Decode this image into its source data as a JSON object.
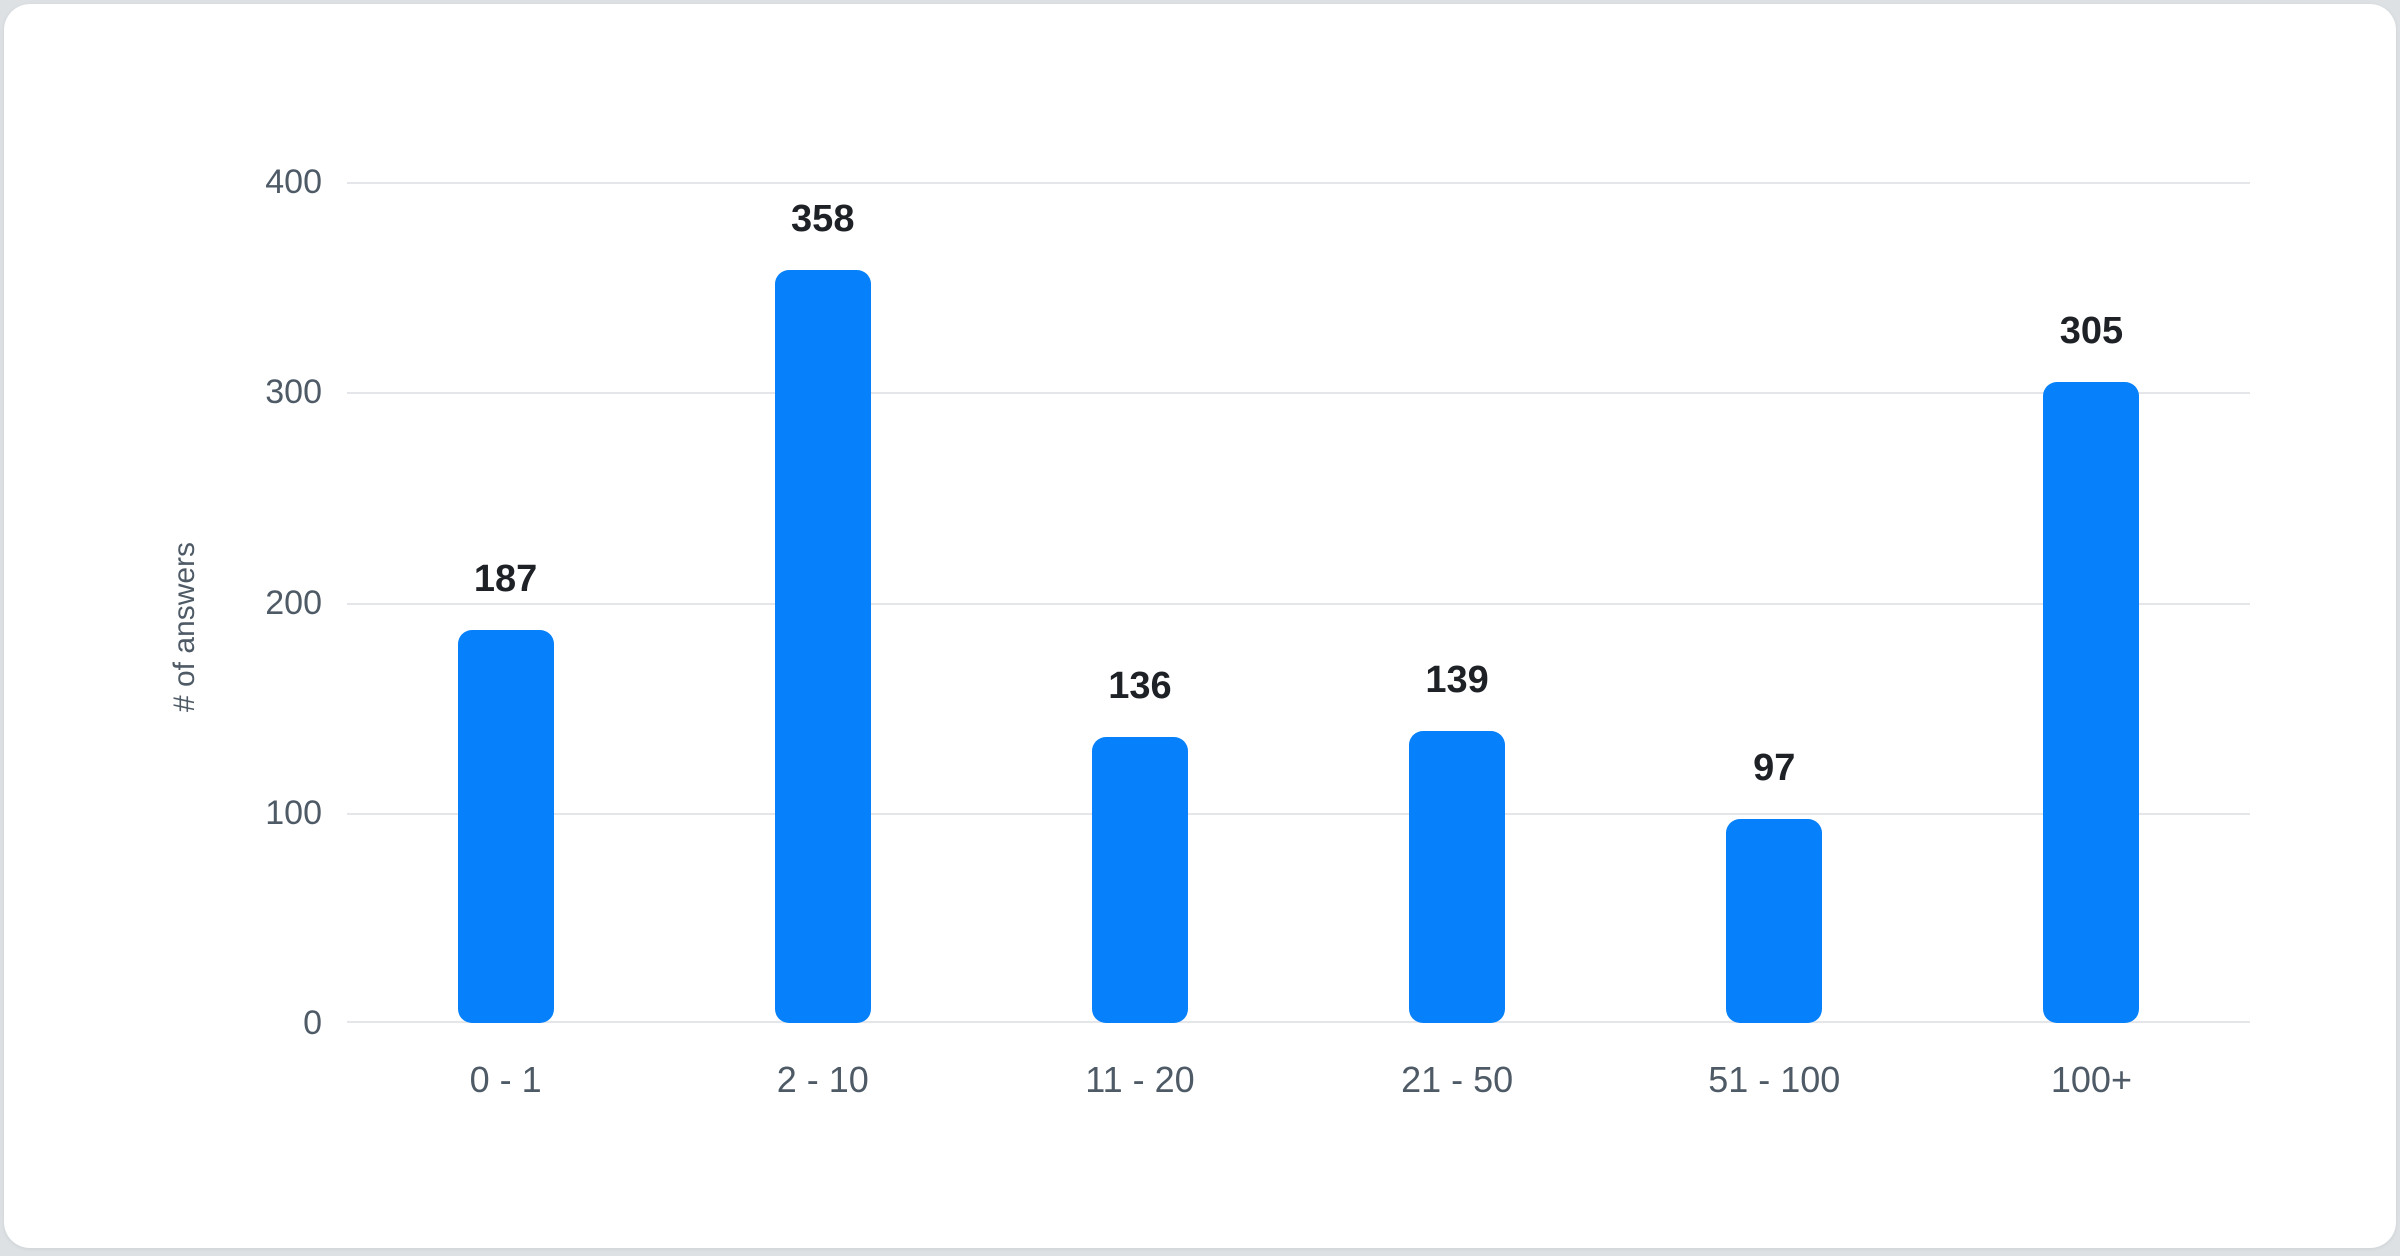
{
  "page": {
    "background_color": "#dde1e4",
    "card_background_color": "#ffffff"
  },
  "chart_data": {
    "type": "bar",
    "title": "",
    "xlabel": "",
    "ylabel": "# of answers",
    "categories": [
      "0 - 1",
      "2 - 10",
      "11 - 20",
      "21 - 50",
      "51 - 100",
      "100+"
    ],
    "values": [
      187,
      358,
      136,
      139,
      97,
      305
    ],
    "value_labels": [
      "187",
      "358",
      "136",
      "139",
      "97",
      "305"
    ],
    "ylim": [
      0,
      400
    ],
    "y_ticks": [
      0,
      100,
      200,
      300,
      400
    ],
    "grid": true,
    "legend": "none",
    "bar_color": "#0681fb",
    "value_label_color": "#1e2126",
    "axis_text_color": "#4e5a66",
    "grid_color": "#e4e6ea"
  }
}
